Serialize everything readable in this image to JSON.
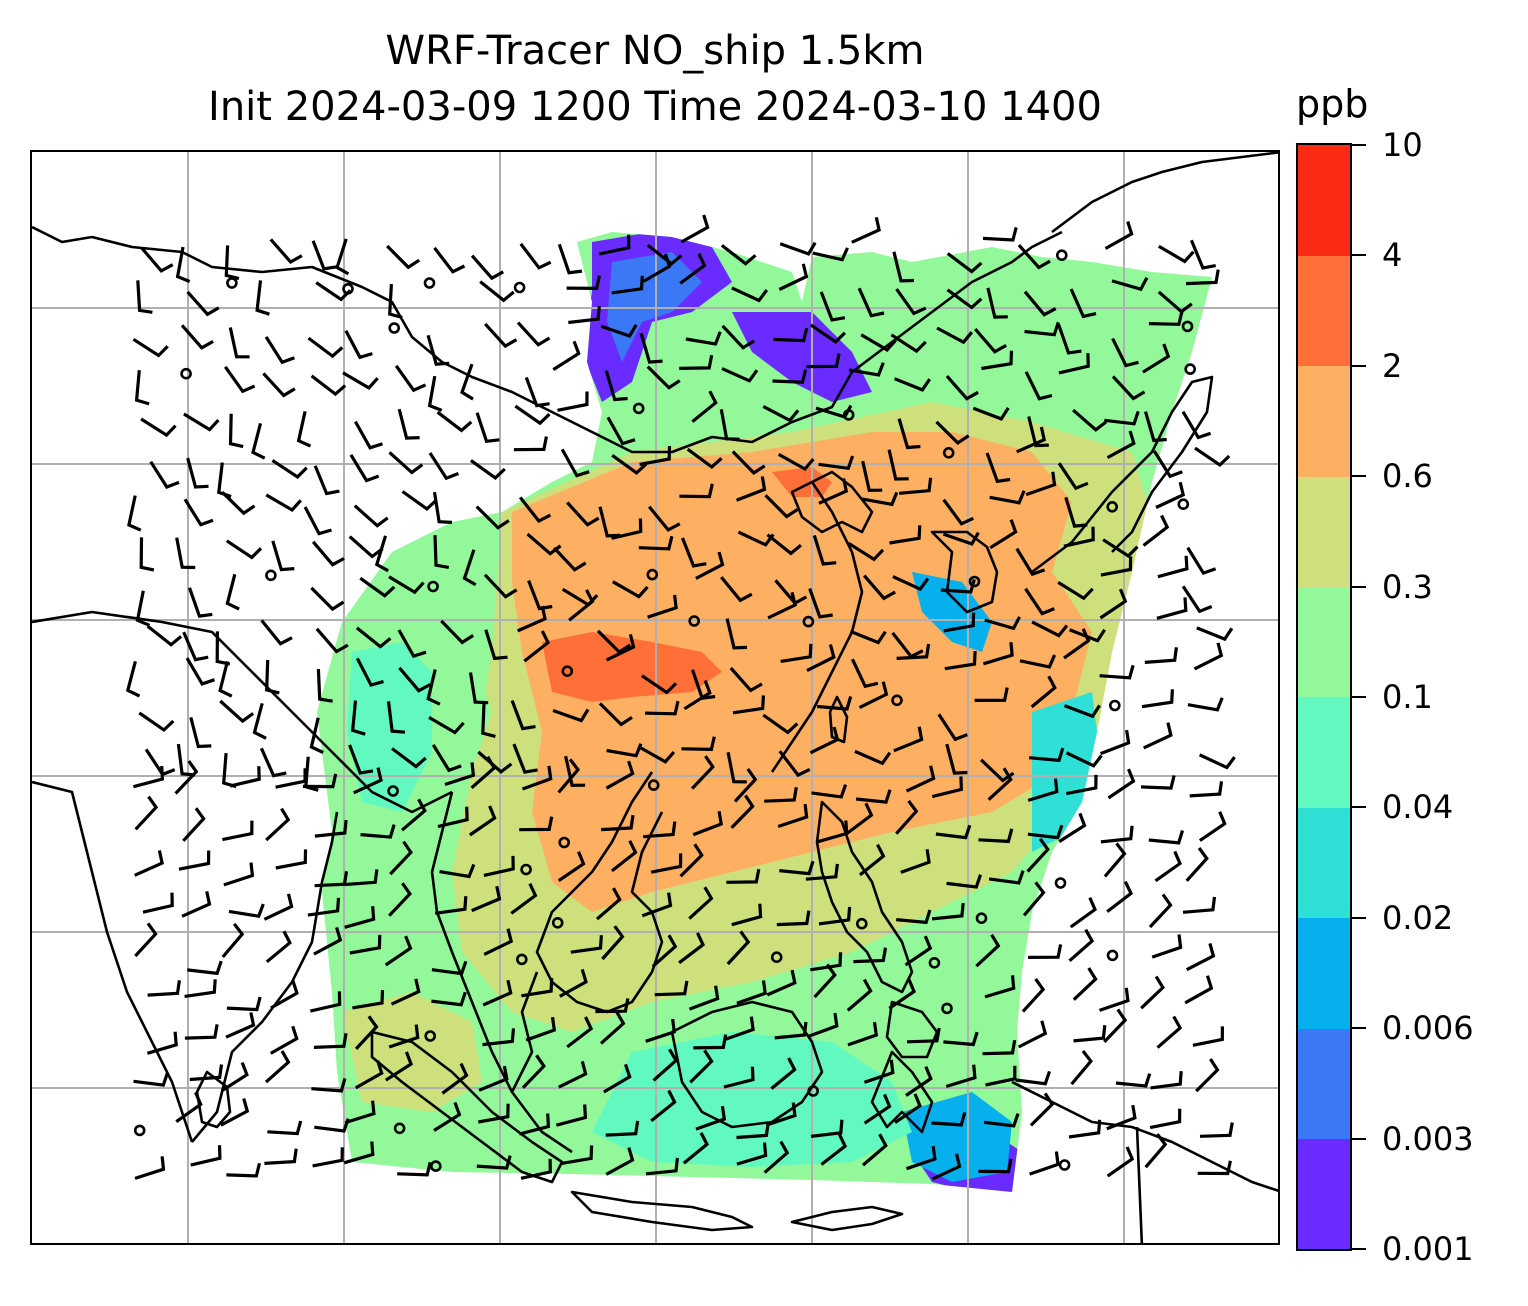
{
  "title": {
    "line1": "WRF-Tracer NO_ship 1.5km",
    "line2": "Init 2024-03-09 1200 Time 2024-03-10 1400"
  },
  "colorbar": {
    "unit": "ppb",
    "levels": [
      "0.001",
      "0.003",
      "0.006",
      "0.02",
      "0.04",
      "0.1",
      "0.3",
      "0.6",
      "2",
      "4",
      "10"
    ],
    "colors": [
      "#6a2bff",
      "#3a78f5",
      "#05b0ec",
      "#2fe0d6",
      "#62f9c1",
      "#93f89a",
      "#cde07c",
      "#fdaf62",
      "#fe7038",
      "#fb2a14"
    ]
  },
  "map": {
    "gridlines": true,
    "colors": {
      "coast": "#000000",
      "grid": "#b0b0b0",
      "barb": "#000000"
    }
  }
}
